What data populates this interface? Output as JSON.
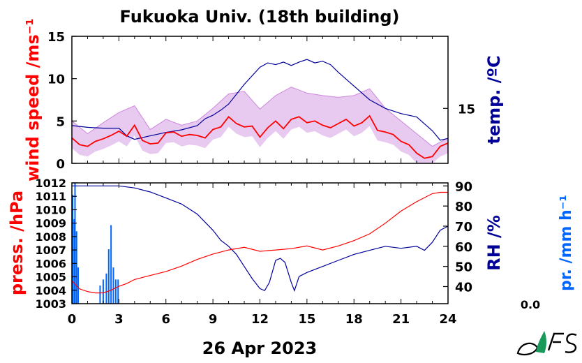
{
  "title": "Fukuoka Univ. (18th building)",
  "date_label": "26 Apr 2023",
  "colors": {
    "wind": "#ff0000",
    "wind_gust": "#cc88dd",
    "temp": "#000099",
    "press": "#ff0000",
    "rh": "#000099",
    "precip": "#0066ff",
    "text": "#000000"
  },
  "chart_data": [
    {
      "type": "line",
      "name": "top",
      "xlabel": "",
      "xlim": [
        0,
        24
      ],
      "left_axis": {
        "label": "wind speed /ms⁻¹",
        "ylim": [
          0,
          15
        ],
        "ticks": [
          "0",
          "5",
          "10",
          "15"
        ]
      },
      "right_axis": {
        "label": "temp. /ºC",
        "ticks": [
          "15"
        ],
        "tick_value": 15,
        "ylim": [
          8.6,
          23.4
        ]
      },
      "series": [
        {
          "name": "wind speed",
          "axis": "left",
          "color": "#ff0000",
          "x": [
            0,
            0.5,
            1,
            1.5,
            2,
            2.5,
            3,
            3.5,
            4,
            4.5,
            5,
            5.5,
            6,
            6.5,
            7,
            7.5,
            8,
            8.5,
            9,
            9.5,
            10,
            10.5,
            11,
            11.5,
            12,
            12.5,
            13,
            13.5,
            14,
            14.5,
            15,
            15.5,
            16,
            16.5,
            17,
            17.5,
            18,
            18.5,
            19,
            19.5,
            20,
            20.5,
            21,
            21.5,
            22,
            22.5,
            23,
            23.5,
            24
          ],
          "y": [
            3.0,
            2.2,
            2.0,
            2.6,
            2.9,
            3.3,
            3.8,
            3.2,
            4.5,
            2.7,
            2.3,
            2.4,
            3.6,
            3.7,
            3.2,
            3.4,
            3.3,
            3.0,
            4.0,
            4.3,
            5.5,
            4.7,
            4.3,
            4.4,
            3.1,
            4.2,
            5.0,
            4.1,
            5.2,
            5.5,
            4.8,
            5.0,
            4.5,
            4.2,
            4.7,
            5.2,
            4.4,
            4.8,
            5.6,
            3.9,
            3.7,
            3.4,
            2.6,
            2.2,
            1.2,
            0.6,
            0.8,
            2.0,
            2.4
          ]
        },
        {
          "name": "wind gust",
          "axis": "left",
          "color": "#cc88dd",
          "x": [
            0,
            1,
            2,
            3,
            4,
            5,
            6,
            7,
            8,
            9,
            10,
            11,
            12,
            13,
            14,
            15,
            16,
            17,
            18,
            19,
            20,
            21,
            22,
            23,
            24
          ],
          "y": [
            5.0,
            3.5,
            4.8,
            6.0,
            6.8,
            4.0,
            5.2,
            4.5,
            5.0,
            6.5,
            8.2,
            8.5,
            6.4,
            8.0,
            9.0,
            8.3,
            8.0,
            7.8,
            8.0,
            8.8,
            6.5,
            5.0,
            3.5,
            2.0,
            3.0
          ]
        },
        {
          "name": "temperature",
          "axis": "right",
          "color": "#000099",
          "x": [
            0,
            1,
            2,
            3,
            3.5,
            4,
            5,
            6,
            7,
            8,
            8.5,
            9,
            9.5,
            10,
            11,
            12,
            12.5,
            13,
            13.5,
            14,
            14.5,
            15,
            15.5,
            16,
            16.5,
            17,
            18,
            19,
            20,
            21,
            22,
            22.5,
            23,
            23.5,
            24
          ],
          "y": [
            13.0,
            12.8,
            12.7,
            12.7,
            11.8,
            11.4,
            11.8,
            12.2,
            12.5,
            13.0,
            13.8,
            14.2,
            14.8,
            15.5,
            17.8,
            19.8,
            20.3,
            20.1,
            20.4,
            20.0,
            20.4,
            20.7,
            20.3,
            20.5,
            20.1,
            19.2,
            17.6,
            16.0,
            15.0,
            14.4,
            14.0,
            13.2,
            12.4,
            11.3,
            11.5
          ]
        }
      ]
    },
    {
      "type": "line",
      "name": "bottom",
      "xlabel": "26 Apr 2023",
      "xlim": [
        0,
        24
      ],
      "x_ticks": [
        "0",
        "3",
        "6",
        "9",
        "12",
        "15",
        "18",
        "21",
        "24"
      ],
      "left_axis": {
        "label": "press. /hPa",
        "ylim": [
          1003,
          1012
        ],
        "ticks": [
          "1003",
          "1004",
          "1005",
          "1006",
          "1007",
          "1008",
          "1009",
          "1010",
          "1011",
          "1012"
        ]
      },
      "right_axis": {
        "label": "RH /%",
        "ylim": [
          31.5,
          91.5
        ],
        "ticks": [
          "40",
          "50",
          "60",
          "70",
          "80",
          "90"
        ]
      },
      "precip_axis": {
        "label": "pr. /mm h⁻¹",
        "max_label": "0.0"
      },
      "series": [
        {
          "name": "pressure",
          "axis": "left",
          "color": "#ff0000",
          "x": [
            0,
            0.5,
            1,
            1.5,
            2,
            2.5,
            3,
            3.5,
            4,
            5,
            6,
            7,
            8,
            9,
            10,
            11,
            12,
            13,
            14,
            15,
            16,
            17,
            18,
            19,
            20,
            21,
            22,
            23,
            23.5,
            24
          ],
          "y": [
            1004.7,
            1004.1,
            1003.9,
            1003.8,
            1003.8,
            1004.0,
            1004.3,
            1004.5,
            1004.8,
            1005.1,
            1005.4,
            1005.8,
            1006.3,
            1006.7,
            1007.0,
            1007.2,
            1006.9,
            1007.0,
            1007.1,
            1007.3,
            1007.0,
            1007.3,
            1007.7,
            1008.2,
            1009.0,
            1009.9,
            1010.6,
            1011.2,
            1011.3,
            1011.3
          ]
        },
        {
          "name": "relative humidity",
          "axis": "right",
          "color": "#000099",
          "x": [
            0,
            1,
            2,
            3,
            4,
            5,
            6,
            7,
            8,
            9,
            9.5,
            10,
            10.5,
            11,
            11.5,
            12,
            12.3,
            12.6,
            13,
            13.3,
            13.6,
            14,
            14.2,
            14.5,
            15,
            16,
            17,
            18,
            19,
            20,
            21,
            22,
            22.5,
            23,
            23.5,
            24
          ],
          "y": [
            90,
            90,
            90,
            90,
            89,
            87,
            84,
            81,
            76,
            68,
            63,
            60,
            56,
            50,
            44,
            39,
            38,
            42,
            53,
            54,
            52,
            42,
            38,
            45,
            47,
            50,
            53,
            56,
            58,
            60,
            59,
            60,
            58,
            62,
            68,
            70
          ]
        },
        {
          "name": "precipitation",
          "axis": "precip",
          "color": "#0066ff",
          "x": [
            0.05,
            0.15,
            0.2,
            0.3,
            0.4,
            1.8,
            2.0,
            2.2,
            2.35,
            2.5,
            2.65,
            2.8,
            2.95
          ],
          "y": [
            0.9,
            0.7,
            1.0,
            0.6,
            0.3,
            0.15,
            0.2,
            0.25,
            0.45,
            0.65,
            0.3,
            0.2,
            0.2
          ]
        }
      ]
    }
  ]
}
